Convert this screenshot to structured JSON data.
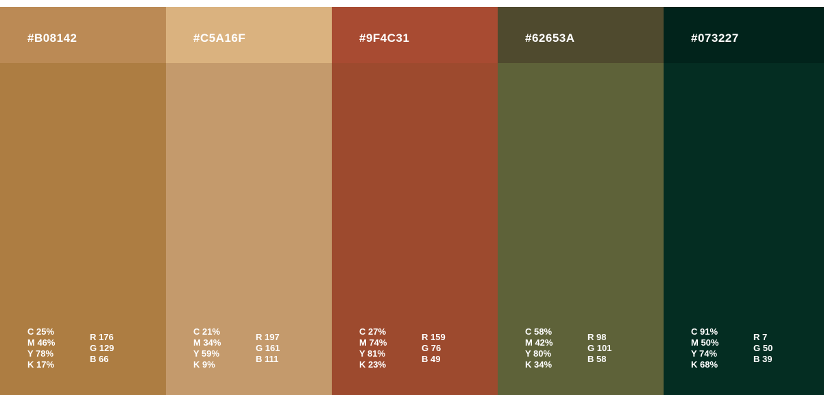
{
  "swatches": [
    {
      "hex": "#B08142",
      "cmyk": [
        "C 25%",
        "M 46%",
        "Y 78%",
        "K 17%"
      ],
      "rgb": [
        "R 176",
        "G 129",
        "B 66"
      ]
    },
    {
      "hex": "#C5A16F",
      "cmyk": [
        "C 21%",
        "M 34%",
        "Y 59%",
        "K 9%"
      ],
      "rgb": [
        "R 197",
        "G 161",
        "B 111"
      ]
    },
    {
      "hex": "#9F4C31",
      "cmyk": [
        "C 27%",
        "M 74%",
        "Y 81%",
        "K 23%"
      ],
      "rgb": [
        "R 159",
        "G 76",
        "B 49"
      ]
    },
    {
      "hex": "#62653A",
      "cmyk": [
        "C 58%",
        "M 42%",
        "Y 80%",
        "K 34%"
      ],
      "rgb": [
        "R 98",
        "G 101",
        "B 58"
      ]
    },
    {
      "hex": "#073227",
      "cmyk": [
        "C 91%",
        "M 50%",
        "Y 74%",
        "K 68%"
      ],
      "rgb": [
        "R 7",
        "G 50",
        "B 39"
      ]
    }
  ]
}
